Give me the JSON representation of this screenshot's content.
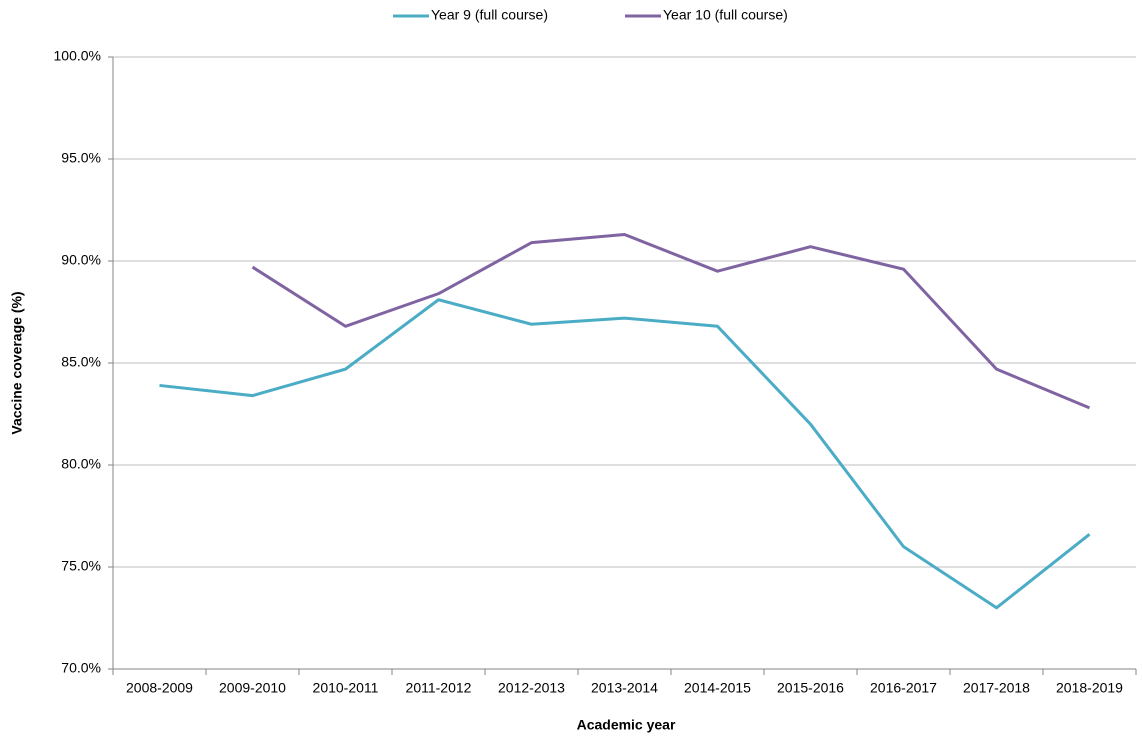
{
  "chart_data": {
    "type": "line",
    "x_label": "Academic year",
    "y_label": "Vaccine coverage (%)",
    "categories": [
      "2008-2009",
      "2009-2010",
      "2010-2011",
      "2011-2012",
      "2012-2013",
      "2013-2014",
      "2014-2015",
      "2015-2016",
      "2016-2017",
      "2017-2018",
      "2018-2019"
    ],
    "series": [
      {
        "name": "Year 9 (full course)",
        "color": "#4bacc6",
        "values": [
          83.9,
          83.4,
          84.7,
          88.1,
          86.9,
          87.2,
          86.8,
          82.0,
          76.0,
          73.0,
          76.6
        ]
      },
      {
        "name": "Year 10 (full course)",
        "color": "#8064a2",
        "values": [
          null,
          89.7,
          86.8,
          88.4,
          90.9,
          91.3,
          89.5,
          90.7,
          89.6,
          84.7,
          82.8
        ]
      }
    ],
    "ylim": [
      70,
      100
    ],
    "yticks": [
      {
        "value": 70,
        "label": "70.0%"
      },
      {
        "value": 75,
        "label": "75.0%"
      },
      {
        "value": 80,
        "label": "80.0%"
      },
      {
        "value": 85,
        "label": "85.0%"
      },
      {
        "value": 90,
        "label": "90.0%"
      },
      {
        "value": 95,
        "label": "95.0%"
      },
      {
        "value": 100,
        "label": "100.0%"
      }
    ],
    "grid": true,
    "legend": "top"
  }
}
